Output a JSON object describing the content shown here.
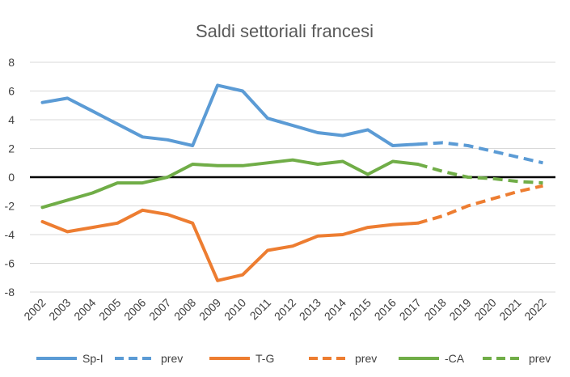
{
  "chart_data": {
    "type": "line",
    "title": "Saldi settoriali francesi",
    "xlabel": "",
    "ylabel": "",
    "x": [
      "2002",
      "2003",
      "2004",
      "2005",
      "2006",
      "2007",
      "2008",
      "2009",
      "2010",
      "2011",
      "2012",
      "2013",
      "2014",
      "2015",
      "2016",
      "2017",
      "2018",
      "2019",
      "2020",
      "2021",
      "2022"
    ],
    "ylim": [
      -8,
      8
    ],
    "yticks": [
      -8,
      -6,
      -4,
      -2,
      0,
      2,
      4,
      6,
      8
    ],
    "grid": true,
    "legend_position": "bottom",
    "series": [
      {
        "name": "Sp-I",
        "color": "#5B9BD5",
        "dashed": false,
        "values": [
          5.2,
          5.5,
          4.6,
          3.7,
          2.8,
          2.6,
          2.2,
          6.4,
          6.0,
          4.1,
          3.6,
          3.1,
          2.9,
          3.3,
          2.2,
          2.3,
          null,
          null,
          null,
          null,
          null
        ]
      },
      {
        "name": "prev",
        "color": "#5B9BD5",
        "dashed": true,
        "values": [
          null,
          null,
          null,
          null,
          null,
          null,
          null,
          null,
          null,
          null,
          null,
          null,
          null,
          null,
          null,
          2.3,
          2.4,
          2.2,
          1.8,
          1.4,
          1.0
        ]
      },
      {
        "name": "T-G",
        "color": "#ED7D31",
        "dashed": false,
        "values": [
          -3.1,
          -3.8,
          -3.5,
          -3.2,
          -2.3,
          -2.6,
          -3.2,
          -7.2,
          -6.8,
          -5.1,
          -4.8,
          -4.1,
          -4.0,
          -3.5,
          -3.3,
          -3.2,
          null,
          null,
          null,
          null,
          null
        ]
      },
      {
        "name": "prev",
        "color": "#ED7D31",
        "dashed": true,
        "values": [
          null,
          null,
          null,
          null,
          null,
          null,
          null,
          null,
          null,
          null,
          null,
          null,
          null,
          null,
          null,
          -3.2,
          -2.7,
          -2.0,
          -1.5,
          -1.0,
          -0.6
        ]
      },
      {
        "name": "-CA",
        "color": "#70AD47",
        "dashed": false,
        "values": [
          -2.1,
          -1.6,
          -1.1,
          -0.4,
          -0.4,
          0.0,
          0.9,
          0.8,
          0.8,
          1.0,
          1.2,
          0.9,
          1.1,
          0.2,
          1.1,
          0.9,
          null,
          null,
          null,
          null,
          null
        ]
      },
      {
        "name": "prev",
        "color": "#70AD47",
        "dashed": true,
        "values": [
          null,
          null,
          null,
          null,
          null,
          null,
          null,
          null,
          null,
          null,
          null,
          null,
          null,
          null,
          null,
          0.9,
          0.4,
          0.0,
          -0.1,
          -0.3,
          -0.4
        ]
      }
    ]
  }
}
